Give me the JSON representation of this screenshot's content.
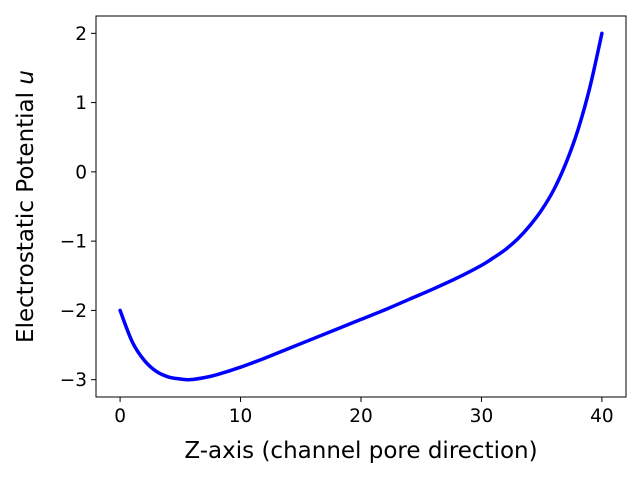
{
  "chart_data": {
    "type": "line",
    "title": "",
    "xlabel": "Z-axis (channel pore direction)",
    "ylabel_prefix": "Electrostatic Potential ",
    "ylabel_var": "u",
    "xlim": [
      -2,
      42
    ],
    "ylim": [
      -3.25,
      2.25
    ],
    "xticks": [
      0,
      10,
      20,
      30,
      40
    ],
    "yticks": [
      -3,
      -2,
      -1,
      0,
      1,
      2
    ],
    "xtick_labels": [
      "0",
      "10",
      "20",
      "30",
      "40"
    ],
    "ytick_labels": [
      "−3",
      "−2",
      "−1",
      "0",
      "1",
      "2"
    ],
    "grid": false,
    "legend": "none",
    "series": [
      {
        "color": "#0000ff",
        "x": [
          0,
          1,
          2,
          3,
          4,
          5,
          5.8,
          7,
          8,
          10,
          12,
          14,
          16,
          18,
          20,
          22,
          24,
          26,
          28,
          30,
          31,
          32,
          33,
          34,
          35,
          36,
          37,
          38,
          39,
          40
        ],
        "y": [
          -2.0,
          -2.45,
          -2.72,
          -2.88,
          -2.96,
          -2.99,
          -3.0,
          -2.97,
          -2.93,
          -2.82,
          -2.69,
          -2.55,
          -2.41,
          -2.27,
          -2.13,
          -1.99,
          -1.84,
          -1.69,
          -1.53,
          -1.35,
          -1.24,
          -1.12,
          -0.97,
          -0.78,
          -0.55,
          -0.26,
          0.12,
          0.6,
          1.22,
          2.0
        ]
      }
    ]
  }
}
